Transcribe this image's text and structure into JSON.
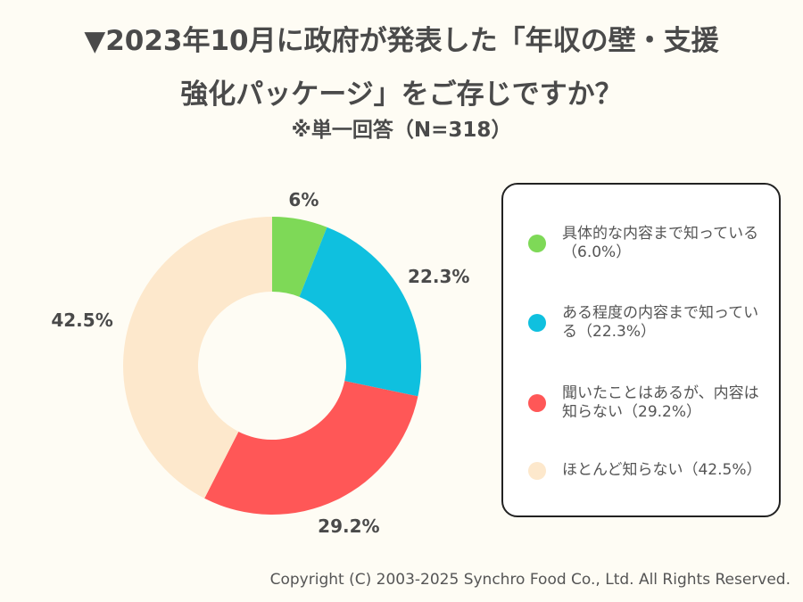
{
  "title_line1": "▼2023年10月に政府が発表した「年収の壁・支援",
  "title_line2": "強化パッケージ」をご存じですか？",
  "subtitle": "※単一回答（N=318）",
  "chart_data": {
    "type": "pie",
    "variant": "donut",
    "start": "top, clockwise",
    "categories": [
      "具体的な内容まで知っている（6.0%）",
      "ある程度の内容まで知っている（22.3%）",
      "聞いたことはあるが、内容は知らない（29.2%）",
      "ほとんど知らない（42.5%）"
    ],
    "values": [
      6.0,
      22.3,
      29.2,
      42.5
    ],
    "data_labels": [
      "6%",
      "22.3%",
      "29.2%",
      "42.5%"
    ],
    "colors": [
      "#7ed957",
      "#0fc0df",
      "#ff5757",
      "#fde8cc"
    ],
    "legend_placement": "right"
  },
  "copyright": "Copyright (C) 2003-2025  Synchro Food Co., Ltd. All Rights Reserved."
}
